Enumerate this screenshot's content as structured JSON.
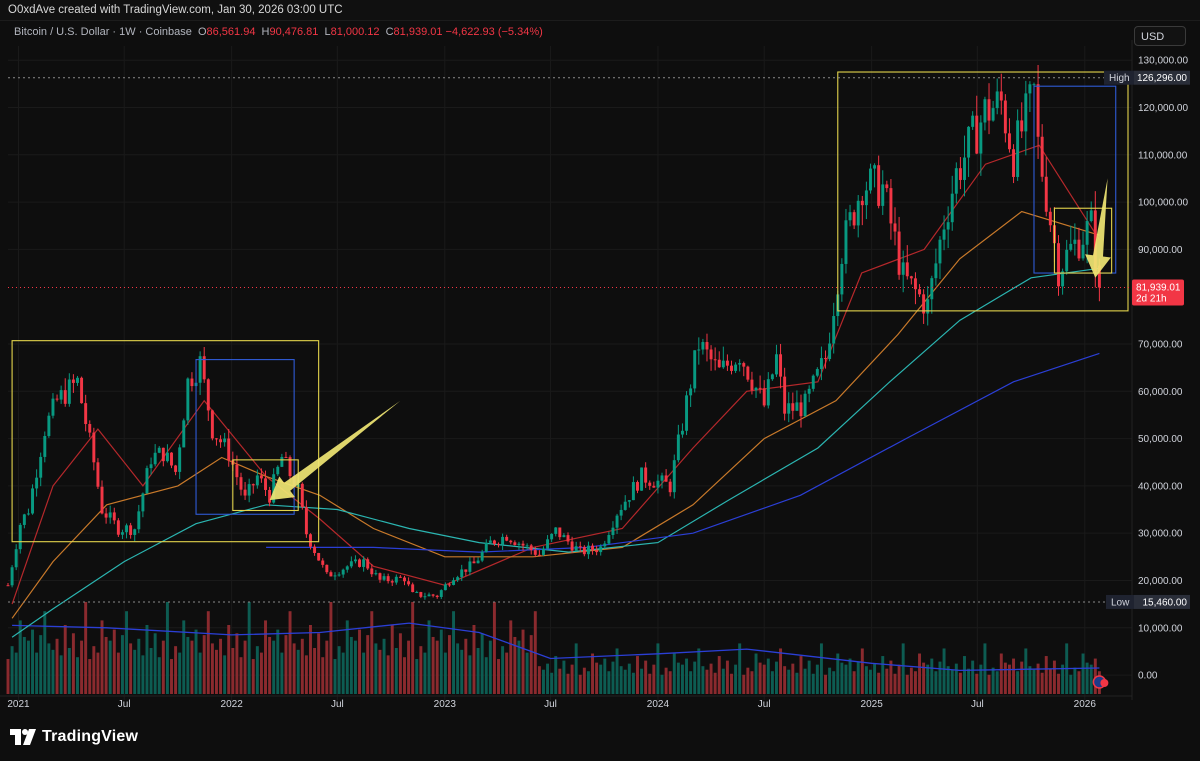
{
  "header": {
    "attribution": "O0xdAve created with TradingView.com, Jan 30, 2026 03:00 UTC"
  },
  "legend": {
    "symbol": "Bitcoin / U.S. Dollar · 1W · Coinbase",
    "open_label": "O",
    "open": "86,561.94",
    "high_label": "H",
    "high": "90,476.81",
    "low_label": "L",
    "low": "81,000.12",
    "close_label": "C",
    "close": "81,939.01",
    "change": "−4,622.93 (−5.34%)"
  },
  "currency_button": "USD",
  "brand": {
    "name": "TradingView",
    "logo_icon": "tradingview-logo-icon"
  },
  "colors": {
    "background": "#0e0e0e",
    "up": "#089981",
    "down": "#f23645",
    "axis_text": "#d1d4dc",
    "ma_red": "#b5282b",
    "ma_orange": "#c8792a",
    "ma_teal": "#2bb5b1",
    "ma_blue": "#2b3fd6",
    "box_yellow": "#e3d44c",
    "box_blue": "#2f5bd6",
    "arrow": "#f0e673",
    "badge_red": "#f23645"
  },
  "chart_data": {
    "type": "candlestick",
    "timeframe": "1W",
    "x_tick_labels": [
      "2021",
      "Jul",
      "2022",
      "Jul",
      "2023",
      "Jul",
      "2024",
      "Jul",
      "2025",
      "Jul",
      "2026"
    ],
    "x_tick_dates": [
      "2021-01-01",
      "2021-07-01",
      "2022-01-01",
      "2022-07-01",
      "2023-01-01",
      "2023-07-01",
      "2024-01-01",
      "2024-07-01",
      "2025-01-01",
      "2025-07-01",
      "2026-01-01"
    ],
    "y_tick_labels": [
      "130,000.00",
      "120,000.00",
      "110,000.00",
      "100,000.00",
      "90,000.00",
      "70,000.00",
      "60,000.00",
      "50,000.00",
      "40,000.00",
      "30,000.00",
      "20,000.00",
      "10,000.00",
      "0.00"
    ],
    "y_ticks": [
      130000,
      120000,
      110000,
      100000,
      90000,
      70000,
      60000,
      50000,
      40000,
      30000,
      20000,
      10000,
      0
    ],
    "ylim": [
      -4000,
      133000
    ],
    "price_path": [
      [
        "2020-12-14",
        19000
      ],
      [
        "2021-01-04",
        32000
      ],
      [
        "2021-01-18",
        35000
      ],
      [
        "2021-02-15",
        52000
      ],
      [
        "2021-03-08",
        58000
      ],
      [
        "2021-04-12",
        62000
      ],
      [
        "2021-05-10",
        45000
      ],
      [
        "2021-05-24",
        35000
      ],
      [
        "2021-06-21",
        31000
      ],
      [
        "2021-07-19",
        31000
      ],
      [
        "2021-08-16",
        46000
      ],
      [
        "2021-09-06",
        47000
      ],
      [
        "2021-09-27",
        43000
      ],
      [
        "2021-10-18",
        62000
      ],
      [
        "2021-11-08",
        66000
      ],
      [
        "2021-11-29",
        52000
      ],
      [
        "2021-12-27",
        47000
      ],
      [
        "2022-01-24",
        37000
      ],
      [
        "2022-02-14",
        42000
      ],
      [
        "2022-03-07",
        38000
      ],
      [
        "2022-03-28",
        46000
      ],
      [
        "2022-04-25",
        39000
      ],
      [
        "2022-05-09",
        30000
      ],
      [
        "2022-06-13",
        21000
      ],
      [
        "2022-07-18",
        23000
      ],
      [
        "2022-08-15",
        24000
      ],
      [
        "2022-09-12",
        20000
      ],
      [
        "2022-10-24",
        20500
      ],
      [
        "2022-11-07",
        17000
      ],
      [
        "2022-12-19",
        16800
      ],
      [
        "2023-01-16",
        21000
      ],
      [
        "2023-02-20",
        23500
      ],
      [
        "2023-03-20",
        28000
      ],
      [
        "2023-04-17",
        29500
      ],
      [
        "2023-06-12",
        25500
      ],
      [
        "2023-07-10",
        30500
      ],
      [
        "2023-08-21",
        26000
      ],
      [
        "2023-09-25",
        27000
      ],
      [
        "2023-10-23",
        34500
      ],
      [
        "2023-12-04",
        42000
      ],
      [
        "2024-01-22",
        40000
      ],
      [
        "2024-02-26",
        62000
      ],
      [
        "2024-03-11",
        70000
      ],
      [
        "2024-04-15",
        64000
      ],
      [
        "2024-05-20",
        68000
      ],
      [
        "2024-07-01",
        57000
      ],
      [
        "2024-07-22",
        67000
      ],
      [
        "2024-08-05",
        56000
      ],
      [
        "2024-09-09",
        57000
      ],
      [
        "2024-10-14",
        67000
      ],
      [
        "2024-11-11",
        90000
      ],
      [
        "2024-12-16",
        104000
      ],
      [
        "2025-01-20",
        103000
      ],
      [
        "2025-02-24",
        84000
      ],
      [
        "2025-04-07",
        78000
      ],
      [
        "2025-05-05",
        96000
      ],
      [
        "2025-05-26",
        106000
      ],
      [
        "2025-07-14",
        119000
      ],
      [
        "2025-08-11",
        121000
      ],
      [
        "2025-09-01",
        110000
      ],
      [
        "2025-10-06",
        123000
      ],
      [
        "2025-10-13",
        112000
      ],
      [
        "2025-11-17",
        86000
      ],
      [
        "2025-12-08",
        90000
      ],
      [
        "2026-01-12",
        95000
      ],
      [
        "2026-01-26",
        81939
      ]
    ],
    "moving_averages": [
      {
        "color": "ma_red",
        "points": [
          [
            "2020-12-21",
            15000
          ],
          [
            "2021-03-01",
            40000
          ],
          [
            "2021-05-17",
            52000
          ],
          [
            "2021-08-02",
            40000
          ],
          [
            "2021-11-15",
            58000
          ],
          [
            "2022-03-01",
            42000
          ],
          [
            "2022-06-01",
            33000
          ],
          [
            "2022-09-01",
            23000
          ],
          [
            "2023-01-01",
            19000
          ],
          [
            "2023-06-01",
            27000
          ],
          [
            "2023-11-01",
            31000
          ],
          [
            "2024-03-01",
            48000
          ],
          [
            "2024-06-01",
            60000
          ],
          [
            "2024-10-01",
            62000
          ],
          [
            "2024-12-15",
            85000
          ],
          [
            "2025-04-01",
            90000
          ],
          [
            "2025-07-15",
            108000
          ],
          [
            "2025-10-15",
            112000
          ],
          [
            "2026-01-26",
            92000
          ]
        ]
      },
      {
        "color": "ma_orange",
        "points": [
          [
            "2020-12-21",
            12000
          ],
          [
            "2021-03-01",
            24000
          ],
          [
            "2021-06-01",
            36000
          ],
          [
            "2021-10-01",
            40000
          ],
          [
            "2021-12-15",
            46000
          ],
          [
            "2022-03-01",
            42000
          ],
          [
            "2022-06-01",
            38000
          ],
          [
            "2022-09-01",
            31000
          ],
          [
            "2023-01-01",
            25000
          ],
          [
            "2023-06-01",
            25000
          ],
          [
            "2023-11-01",
            27000
          ],
          [
            "2024-03-01",
            36000
          ],
          [
            "2024-07-01",
            50000
          ],
          [
            "2024-11-01",
            58000
          ],
          [
            "2025-02-15",
            72000
          ],
          [
            "2025-06-01",
            88000
          ],
          [
            "2025-09-15",
            98000
          ],
          [
            "2026-01-26",
            93000
          ]
        ]
      },
      {
        "color": "ma_teal",
        "points": [
          [
            "2020-12-21",
            8000
          ],
          [
            "2021-03-01",
            14000
          ],
          [
            "2021-07-01",
            24000
          ],
          [
            "2021-11-01",
            32000
          ],
          [
            "2022-03-01",
            36000
          ],
          [
            "2022-07-01",
            35000
          ],
          [
            "2022-11-01",
            31000
          ],
          [
            "2023-03-01",
            28000
          ],
          [
            "2023-08-01",
            26000
          ],
          [
            "2024-01-01",
            28000
          ],
          [
            "2024-05-01",
            37000
          ],
          [
            "2024-10-01",
            48000
          ],
          [
            "2025-02-01",
            62000
          ],
          [
            "2025-06-01",
            75000
          ],
          [
            "2025-10-01",
            84000
          ],
          [
            "2026-01-26",
            86000
          ]
        ]
      },
      {
        "color": "ma_blue",
        "points": [
          [
            "2022-03-01",
            27000
          ],
          [
            "2022-09-01",
            27000
          ],
          [
            "2023-03-01",
            26000
          ],
          [
            "2023-09-01",
            27000
          ],
          [
            "2024-03-01",
            30000
          ],
          [
            "2024-09-01",
            38000
          ],
          [
            "2025-03-01",
            50000
          ],
          [
            "2025-09-01",
            62000
          ],
          [
            "2026-01-26",
            68000
          ]
        ]
      }
    ],
    "volume_pattern": [
      38,
      52,
      45,
      80,
      62,
      58,
      70,
      45,
      64,
      90,
      55,
      48,
      60,
      42,
      75,
      50,
      66,
      40,
      58,
      100
    ],
    "volume_ma": [
      [
        "2020-12-21",
        10500
      ],
      [
        "2021-06-01",
        10000
      ],
      [
        "2022-01-01",
        8500
      ],
      [
        "2022-06-01",
        9000
      ],
      [
        "2022-11-01",
        11000
      ],
      [
        "2023-03-01",
        9000
      ],
      [
        "2023-07-01",
        3500
      ],
      [
        "2024-01-01",
        4500
      ],
      [
        "2024-06-01",
        5500
      ],
      [
        "2025-01-01",
        2500
      ],
      [
        "2025-06-01",
        1000
      ],
      [
        "2026-01-26",
        1500
      ]
    ],
    "annotations": {
      "high": {
        "label": "High",
        "value": 126296,
        "value_label": "126,296.00"
      },
      "low": {
        "label": "Low",
        "value": 15460,
        "value_label": "15,460.00"
      },
      "last": {
        "value": 81939.01,
        "value_label": "81,939.01",
        "countdown": "2d 21h"
      }
    },
    "boxes": [
      {
        "color": "box_yellow",
        "from": "2020-12-21",
        "to": "2022-05-30",
        "y1": 70700,
        "y2": 28200
      },
      {
        "color": "box_blue",
        "from": "2021-11-01",
        "to": "2022-04-18",
        "y1": 66700,
        "y2": 34000
      },
      {
        "color": "box_yellow",
        "from": "2022-01-03",
        "to": "2022-04-25",
        "y1": 45500,
        "y2": 34800
      },
      {
        "color": "box_yellow",
        "from": "2024-11-04",
        "to": "2026-03-16",
        "y1": 127500,
        "y2": 77000
      },
      {
        "color": "box_blue",
        "from": "2025-10-06",
        "to": "2026-02-23",
        "y1": 124500,
        "y2": 85000
      },
      {
        "color": "box_yellow",
        "from": "2025-11-10",
        "to": "2026-02-16",
        "y1": 98700,
        "y2": 85000
      }
    ],
    "arrows": [
      {
        "from": [
          "2022-10-17",
          58000
        ],
        "to": [
          "2022-03-07",
          37000
        ]
      },
      {
        "from": [
          "2026-02-09",
          105000
        ],
        "to": [
          "2026-01-19",
          84000
        ]
      }
    ]
  }
}
